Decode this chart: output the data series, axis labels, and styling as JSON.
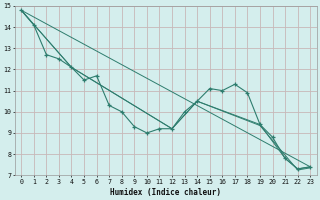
{
  "xlabel": "Humidex (Indice chaleur)",
  "bg_color": "#d4eeed",
  "grid_color": "#c8b8b8",
  "line_color": "#2e7d6e",
  "xlim": [
    -0.5,
    23.5
  ],
  "ylim": [
    7,
    15
  ],
  "yticks": [
    7,
    8,
    9,
    10,
    11,
    12,
    13,
    14,
    15
  ],
  "xticks": [
    0,
    1,
    2,
    3,
    4,
    5,
    6,
    7,
    8,
    9,
    10,
    11,
    12,
    13,
    14,
    15,
    16,
    17,
    18,
    19,
    20,
    21,
    22,
    23
  ],
  "lines": [
    {
      "x": [
        0,
        1,
        2,
        3,
        4,
        5,
        6,
        7,
        8,
        9,
        10,
        11,
        12,
        13,
        14,
        15,
        16,
        17,
        18,
        19,
        20,
        21,
        22,
        23
      ],
      "y": [
        14.8,
        14.1,
        12.7,
        12.5,
        12.1,
        11.5,
        11.7,
        10.3,
        10.0,
        9.3,
        9.0,
        9.2,
        9.2,
        10.0,
        10.5,
        11.1,
        11.0,
        11.3,
        10.9,
        9.4,
        8.8,
        7.8,
        7.3,
        7.4
      ],
      "marker": true
    },
    {
      "x": [
        0,
        4,
        12,
        14,
        19,
        21,
        22,
        23
      ],
      "y": [
        14.8,
        12.1,
        9.2,
        10.5,
        9.4,
        7.8,
        7.3,
        7.4
      ],
      "marker": false
    },
    {
      "x": [
        0,
        4,
        12,
        14,
        19,
        22,
        23
      ],
      "y": [
        14.8,
        12.1,
        9.2,
        10.5,
        9.35,
        7.25,
        7.35
      ],
      "marker": false
    },
    {
      "x": [
        0,
        23
      ],
      "y": [
        14.8,
        7.4
      ],
      "marker": false
    }
  ]
}
